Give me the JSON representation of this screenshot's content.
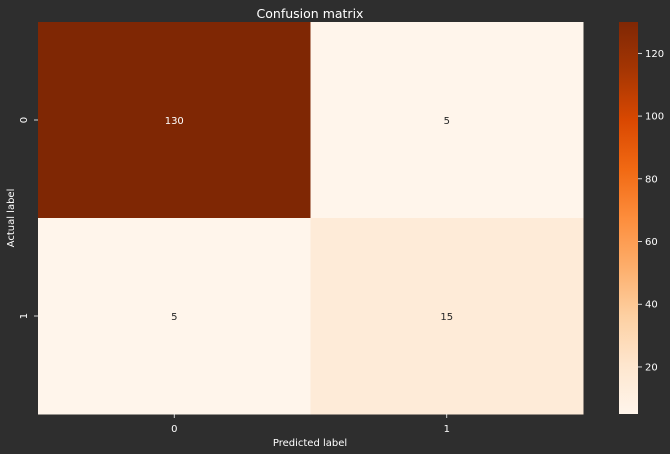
{
  "chart_data": {
    "type": "heatmap",
    "title": "Confusion matrix",
    "xlabel": "Predicted label",
    "ylabel": "Actual label",
    "x_categories": [
      "0",
      "1"
    ],
    "y_categories": [
      "0",
      "1"
    ],
    "values": [
      [
        130,
        5
      ],
      [
        5,
        15
      ]
    ],
    "colorbar": {
      "min": 5,
      "max": 130,
      "ticks": [
        20,
        40,
        60,
        80,
        100,
        120
      ],
      "colormap": "Oranges"
    },
    "colors": {
      "background": "#2e2e2e",
      "text": "#ffffff",
      "cell_text_light": "#ffffff",
      "cell_text_dark": "#262626"
    }
  }
}
